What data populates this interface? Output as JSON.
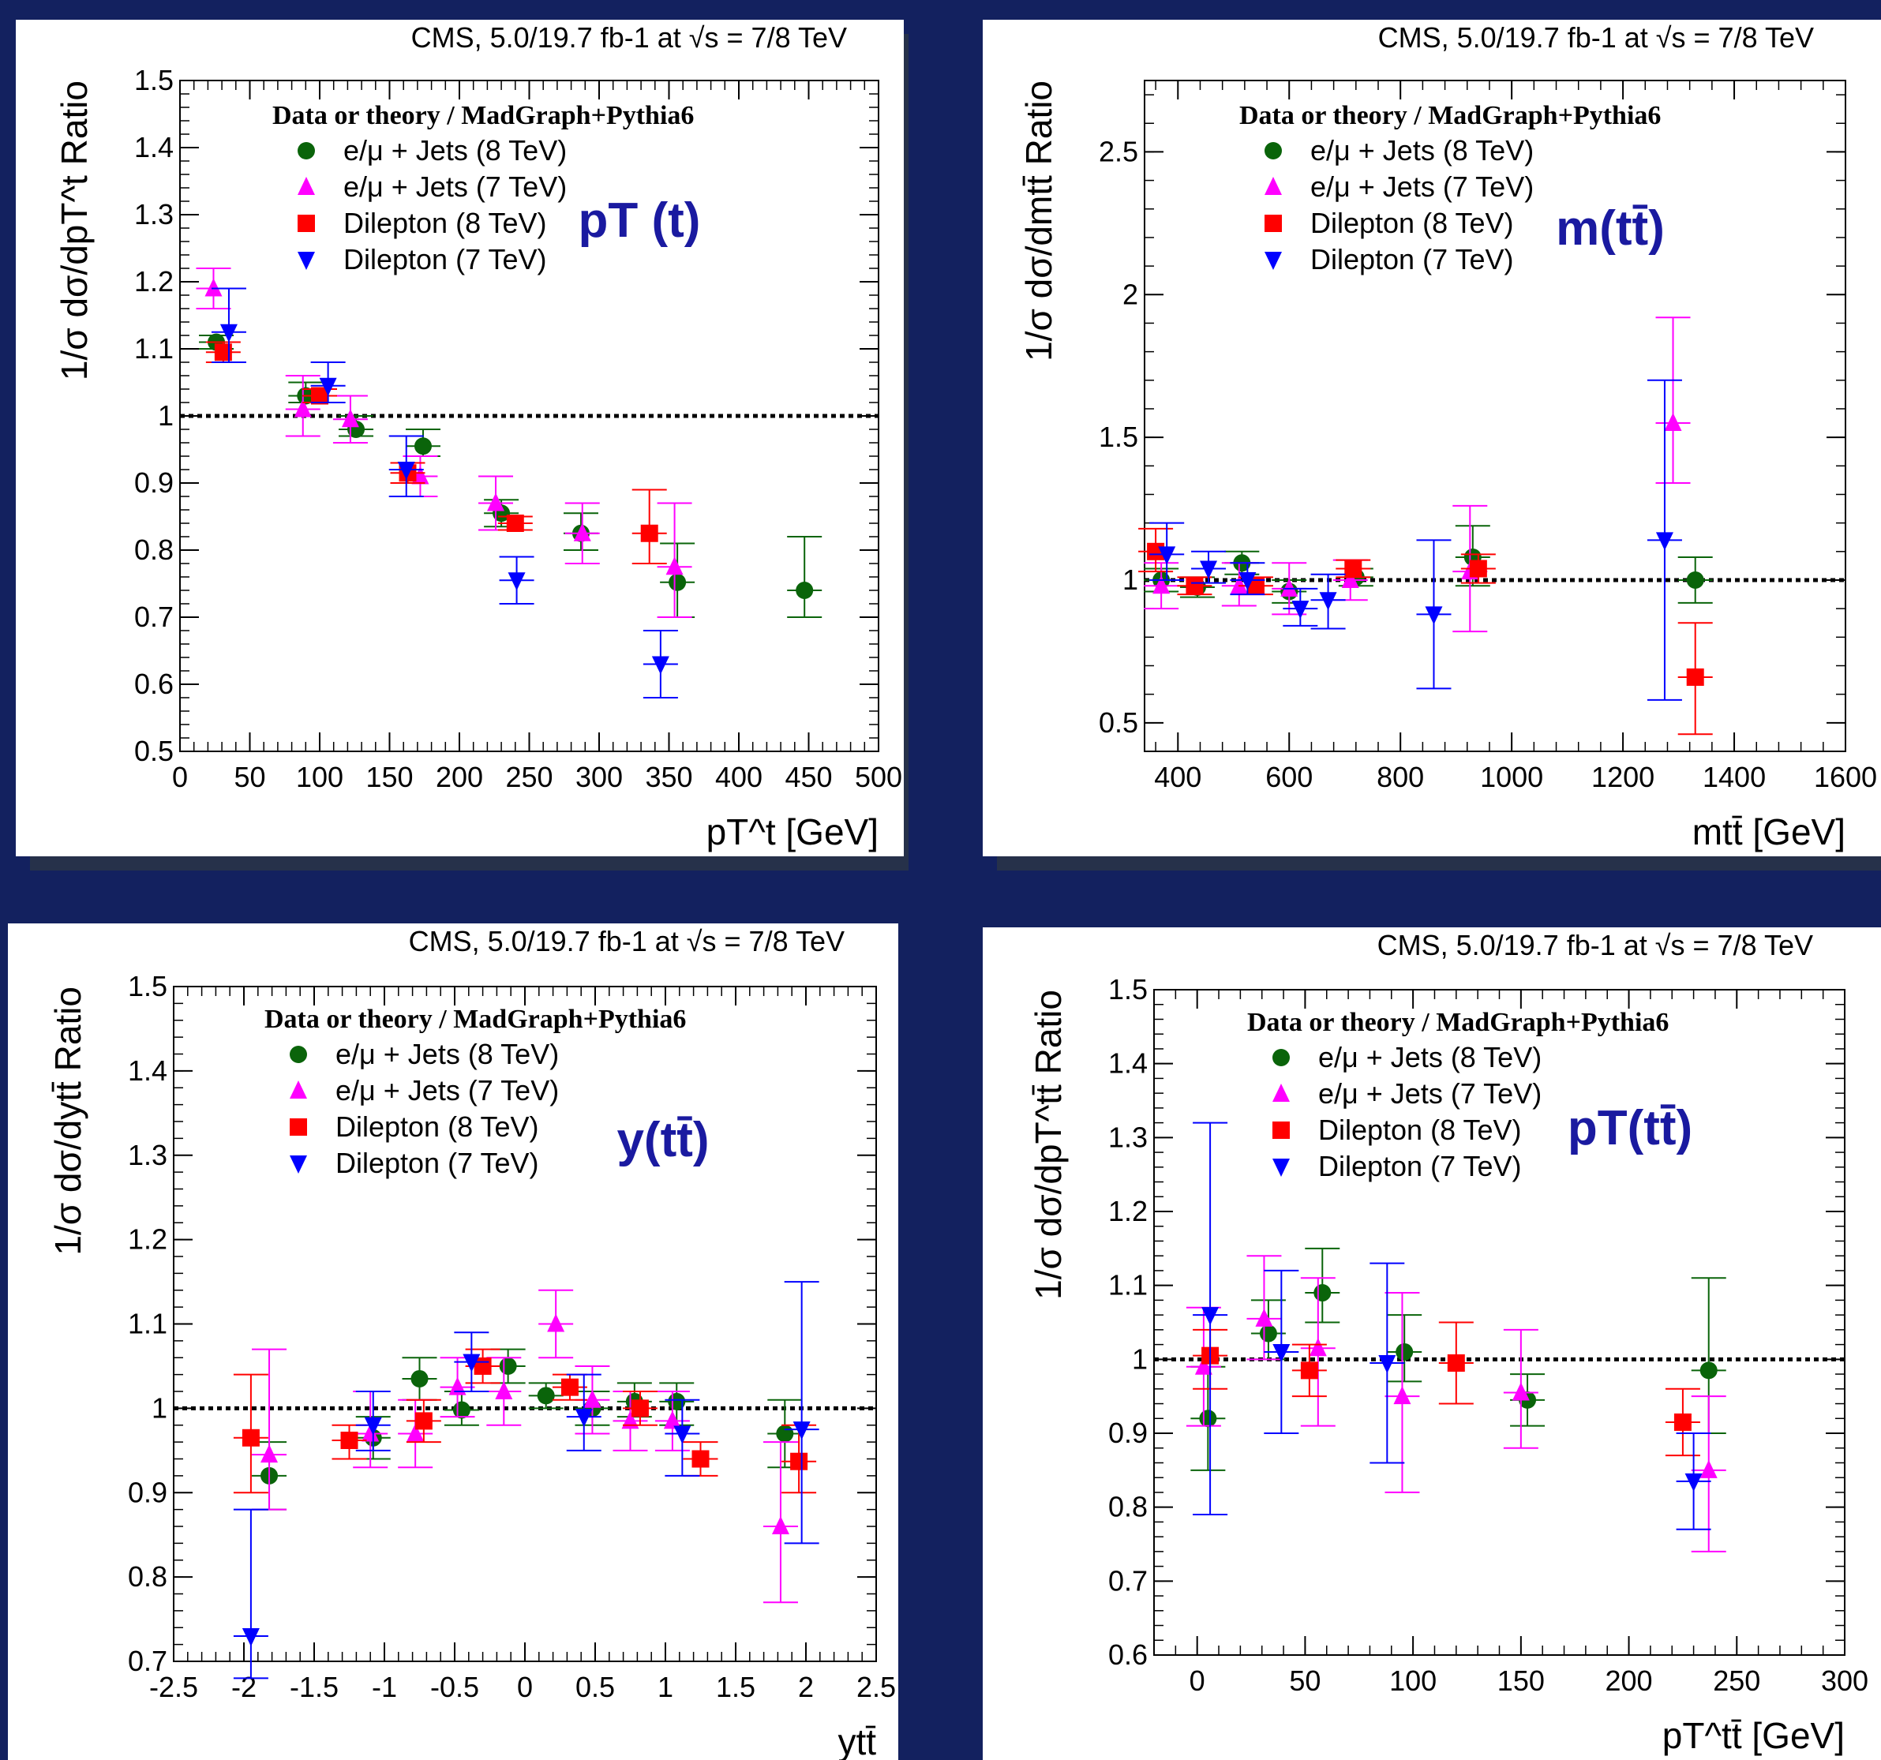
{
  "colors": {
    "background": "#13215f",
    "e_mu_8": "#0a640a",
    "e_mu_7": "#ff00ff",
    "dilep_8": "#ff0000",
    "dilep_7": "#0000ff",
    "annotation": "#1a1aa0"
  },
  "legend_header": "Data or theory / MadGraph+Pythia6",
  "chart_data": [
    {
      "type": "scatter",
      "header": "CMS, 5.0/19.7 fb-1 at √s = 7/8 TeV",
      "annotation": "pT (t)",
      "xlabel": "pT^t [GeV]",
      "ylabel": "1/σ dσ/dpT^t Ratio",
      "xlim": [
        0,
        500
      ],
      "ylim": [
        0.5,
        1.5
      ],
      "xticks": [
        "0",
        "50",
        "100",
        "150",
        "200",
        "250",
        "300",
        "350",
        "400",
        "450",
        "500"
      ],
      "yticks": [
        "0.5",
        "0.6",
        "0.7",
        "0.8",
        "0.9",
        "1",
        "1.1",
        "1.2",
        "1.3",
        "1.4",
        "1.5"
      ],
      "legend": [
        "e/μ + Jets (8 TeV)",
        "e/μ + Jets (7 TeV)",
        "Dilepton (8 TeV)",
        "Dilepton (7 TeV)"
      ],
      "series": [
        {
          "name": "e/μ + Jets (8 TeV)",
          "marker": "circle",
          "points": [
            {
              "x": 26,
              "y": 1.11,
              "lo": 1.1,
              "hi": 1.12
            },
            {
              "x": 90,
              "y": 1.03,
              "lo": 1.02,
              "hi": 1.05
            },
            {
              "x": 126,
              "y": 0.98,
              "lo": 0.97,
              "hi": 1.0
            },
            {
              "x": 174,
              "y": 0.955,
              "lo": 0.94,
              "hi": 0.98
            },
            {
              "x": 230,
              "y": 0.855,
              "lo": 0.835,
              "hi": 0.875
            },
            {
              "x": 287,
              "y": 0.825,
              "lo": 0.8,
              "hi": 0.855
            },
            {
              "x": 356,
              "y": 0.752,
              "lo": 0.7,
              "hi": 0.81
            },
            {
              "x": 447,
              "y": 0.74,
              "lo": 0.7,
              "hi": 0.82
            }
          ]
        },
        {
          "name": "e/μ + Jets (7 TeV)",
          "marker": "triangle-up",
          "points": [
            {
              "x": 24,
              "y": 1.19,
              "lo": 1.16,
              "hi": 1.22
            },
            {
              "x": 88,
              "y": 1.01,
              "lo": 0.97,
              "hi": 1.06
            },
            {
              "x": 122,
              "y": 0.995,
              "lo": 0.96,
              "hi": 1.03
            },
            {
              "x": 172,
              "y": 0.91,
              "lo": 0.88,
              "hi": 0.94
            },
            {
              "x": 226,
              "y": 0.87,
              "lo": 0.83,
              "hi": 0.91
            },
            {
              "x": 288,
              "y": 0.825,
              "lo": 0.78,
              "hi": 0.87
            },
            {
              "x": 354,
              "y": 0.775,
              "lo": 0.7,
              "hi": 0.87
            }
          ]
        },
        {
          "name": "Dilepton (8 TeV)",
          "marker": "square",
          "points": [
            {
              "x": 31,
              "y": 1.095,
              "lo": 1.08,
              "hi": 1.11
            },
            {
              "x": 100,
              "y": 1.03,
              "lo": 1.02,
              "hi": 1.04
            },
            {
              "x": 163,
              "y": 0.915,
              "lo": 0.9,
              "hi": 0.93
            },
            {
              "x": 240,
              "y": 0.84,
              "lo": 0.83,
              "hi": 0.85
            },
            {
              "x": 336,
              "y": 0.825,
              "lo": 0.78,
              "hi": 0.89
            }
          ]
        },
        {
          "name": "Dilepton (7 TeV)",
          "marker": "triangle-down",
          "points": [
            {
              "x": 35,
              "y": 1.125,
              "lo": 1.08,
              "hi": 1.19
            },
            {
              "x": 106,
              "y": 1.045,
              "lo": 1.02,
              "hi": 1.08
            },
            {
              "x": 162,
              "y": 0.92,
              "lo": 0.88,
              "hi": 0.97
            },
            {
              "x": 241,
              "y": 0.755,
              "lo": 0.72,
              "hi": 0.79
            },
            {
              "x": 344,
              "y": 0.63,
              "lo": 0.58,
              "hi": 0.68
            }
          ]
        }
      ]
    },
    {
      "type": "scatter",
      "header": "CMS, 5.0/19.7 fb-1 at √s = 7/8 TeV",
      "annotation": "m(tt̄)",
      "xlabel": "mtt̄ [GeV]",
      "ylabel": "1/σ dσ/dmtt̄ Ratio",
      "xlim": [
        340,
        1600
      ],
      "ylim": [
        0.4,
        2.75
      ],
      "xticks": [
        "400",
        "600",
        "800",
        "1000",
        "1200",
        "1400",
        "1600"
      ],
      "yticks": [
        "0.5",
        "1",
        "1.5",
        "2",
        "2.5"
      ],
      "legend": [
        "e/μ + Jets (8 TeV)",
        "e/μ + Jets (7 TeV)",
        "Dilepton (8 TeV)",
        "Dilepton (7 TeV)"
      ],
      "series": [
        {
          "name": "e/μ + Jets (8 TeV)",
          "marker": "circle",
          "points": [
            {
              "x": 370,
              "y": 1.0,
              "lo": 0.96,
              "hi": 1.04
            },
            {
              "x": 435,
              "y": 0.975,
              "lo": 0.94,
              "hi": 1.01
            },
            {
              "x": 515,
              "y": 1.06,
              "lo": 1.02,
              "hi": 1.1
            },
            {
              "x": 600,
              "y": 0.96,
              "lo": 0.92,
              "hi": 1.0
            },
            {
              "x": 720,
              "y": 1.01,
              "lo": 0.98,
              "hi": 1.04
            },
            {
              "x": 930,
              "y": 1.08,
              "lo": 0.98,
              "hi": 1.19
            },
            {
              "x": 1330,
              "y": 1.0,
              "lo": 0.92,
              "hi": 1.08
            }
          ]
        },
        {
          "name": "e/μ + Jets (7 TeV)",
          "marker": "triangle-up",
          "points": [
            {
              "x": 370,
              "y": 0.98,
              "lo": 0.9,
              "hi": 1.06
            },
            {
              "x": 510,
              "y": 0.98,
              "lo": 0.91,
              "hi": 1.06
            },
            {
              "x": 600,
              "y": 0.97,
              "lo": 0.88,
              "hi": 1.06
            },
            {
              "x": 710,
              "y": 1.0,
              "lo": 0.93,
              "hi": 1.07
            },
            {
              "x": 925,
              "y": 1.03,
              "lo": 0.82,
              "hi": 1.26
            },
            {
              "x": 1290,
              "y": 1.55,
              "lo": 1.34,
              "hi": 1.92
            }
          ]
        },
        {
          "name": "Dilepton (8 TeV)",
          "marker": "square",
          "points": [
            {
              "x": 360,
              "y": 1.1,
              "lo": 1.03,
              "hi": 1.18
            },
            {
              "x": 430,
              "y": 0.98,
              "lo": 0.95,
              "hi": 1.01
            },
            {
              "x": 540,
              "y": 0.98,
              "lo": 0.95,
              "hi": 1.01
            },
            {
              "x": 715,
              "y": 1.04,
              "lo": 1.01,
              "hi": 1.07
            },
            {
              "x": 940,
              "y": 1.04,
              "lo": 0.99,
              "hi": 1.09
            },
            {
              "x": 1330,
              "y": 0.66,
              "lo": 0.46,
              "hi": 0.85
            }
          ]
        },
        {
          "name": "Dilepton (7 TeV)",
          "marker": "triangle-down",
          "points": [
            {
              "x": 380,
              "y": 1.09,
              "lo": 1.0,
              "hi": 1.2
            },
            {
              "x": 455,
              "y": 1.04,
              "lo": 0.99,
              "hi": 1.1
            },
            {
              "x": 525,
              "y": 1.0,
              "lo": 0.95,
              "hi": 1.06
            },
            {
              "x": 620,
              "y": 0.9,
              "lo": 0.84,
              "hi": 0.97
            },
            {
              "x": 670,
              "y": 0.93,
              "lo": 0.83,
              "hi": 1.02
            },
            {
              "x": 860,
              "y": 0.88,
              "lo": 0.62,
              "hi": 1.14
            },
            {
              "x": 1275,
              "y": 1.14,
              "lo": 0.58,
              "hi": 1.7
            }
          ]
        }
      ]
    },
    {
      "type": "scatter",
      "header": "CMS, 5.0/19.7 fb-1 at √s = 7/8 TeV",
      "annotation": "y(tt̄)",
      "xlabel": "ytt̄",
      "ylabel": "1/σ dσ/dytt̄ Ratio",
      "xlim": [
        -2.5,
        2.5
      ],
      "ylim": [
        0.7,
        1.5
      ],
      "xticks": [
        "-2.5",
        "-2",
        "-1.5",
        "-1",
        "-0.5",
        "0",
        "0.5",
        "1",
        "1.5",
        "2",
        "2.5"
      ],
      "yticks": [
        "0.7",
        "0.8",
        "0.9",
        "1",
        "1.1",
        "1.2",
        "1.3",
        "1.4",
        "1.5"
      ],
      "legend": [
        "e/μ + Jets (8 TeV)",
        "e/μ + Jets (7 TeV)",
        "Dilepton (8 TeV)",
        "Dilepton (7 TeV)"
      ],
      "series": [
        {
          "name": "e/μ + Jets (8 TeV)",
          "marker": "circle",
          "points": [
            {
              "x": -1.82,
              "y": 0.92,
              "lo": 0.88,
              "hi": 0.96
            },
            {
              "x": -1.08,
              "y": 0.965,
              "lo": 0.94,
              "hi": 0.99
            },
            {
              "x": -0.75,
              "y": 1.035,
              "lo": 1.01,
              "hi": 1.06
            },
            {
              "x": -0.45,
              "y": 0.998,
              "lo": 0.98,
              "hi": 1.02
            },
            {
              "x": -0.12,
              "y": 1.05,
              "lo": 1.03,
              "hi": 1.07
            },
            {
              "x": 0.15,
              "y": 1.015,
              "lo": 1.0,
              "hi": 1.03
            },
            {
              "x": 0.48,
              "y": 1.0,
              "lo": 0.98,
              "hi": 1.02
            },
            {
              "x": 0.78,
              "y": 1.008,
              "lo": 0.99,
              "hi": 1.03
            },
            {
              "x": 1.08,
              "y": 1.008,
              "lo": 0.98,
              "hi": 1.03
            },
            {
              "x": 1.85,
              "y": 0.97,
              "lo": 0.93,
              "hi": 1.01
            }
          ]
        },
        {
          "name": "e/μ + Jets (7 TeV)",
          "marker": "triangle-up",
          "points": [
            {
              "x": -1.82,
              "y": 0.945,
              "lo": 0.88,
              "hi": 1.07
            },
            {
              "x": -1.1,
              "y": 0.97,
              "lo": 0.93,
              "hi": 1.02
            },
            {
              "x": -0.78,
              "y": 0.97,
              "lo": 0.93,
              "hi": 1.01
            },
            {
              "x": -0.48,
              "y": 1.025,
              "lo": 0.99,
              "hi": 1.06
            },
            {
              "x": -0.15,
              "y": 1.02,
              "lo": 0.98,
              "hi": 1.06
            },
            {
              "x": 0.22,
              "y": 1.1,
              "lo": 1.06,
              "hi": 1.14
            },
            {
              "x": 0.48,
              "y": 1.01,
              "lo": 0.97,
              "hi": 1.05
            },
            {
              "x": 0.75,
              "y": 0.985,
              "lo": 0.95,
              "hi": 1.02
            },
            {
              "x": 1.05,
              "y": 0.985,
              "lo": 0.95,
              "hi": 1.02
            },
            {
              "x": 1.82,
              "y": 0.86,
              "lo": 0.77,
              "hi": 0.96
            }
          ]
        },
        {
          "name": "Dilepton (8 TeV)",
          "marker": "square",
          "points": [
            {
              "x": -1.95,
              "y": 0.965,
              "lo": 0.9,
              "hi": 1.04
            },
            {
              "x": -1.25,
              "y": 0.962,
              "lo": 0.94,
              "hi": 0.98
            },
            {
              "x": -0.72,
              "y": 0.985,
              "lo": 0.96,
              "hi": 1.01
            },
            {
              "x": -0.3,
              "y": 1.05,
              "lo": 1.03,
              "hi": 1.07
            },
            {
              "x": 0.32,
              "y": 1.025,
              "lo": 1.01,
              "hi": 1.04
            },
            {
              "x": 0.82,
              "y": 1.0,
              "lo": 0.98,
              "hi": 1.02
            },
            {
              "x": 1.25,
              "y": 0.94,
              "lo": 0.92,
              "hi": 0.96
            },
            {
              "x": 1.95,
              "y": 0.937,
              "lo": 0.9,
              "hi": 0.98
            }
          ]
        },
        {
          "name": "Dilepton (7 TeV)",
          "marker": "triangle-down",
          "points": [
            {
              "x": -1.95,
              "y": 0.73,
              "lo": 0.68,
              "hi": 0.88
            },
            {
              "x": -1.08,
              "y": 0.98,
              "lo": 0.95,
              "hi": 1.02
            },
            {
              "x": -0.38,
              "y": 1.055,
              "lo": 1.02,
              "hi": 1.09
            },
            {
              "x": 0.42,
              "y": 0.99,
              "lo": 0.95,
              "hi": 1.04
            },
            {
              "x": 1.12,
              "y": 0.97,
              "lo": 0.92,
              "hi": 1.01
            },
            {
              "x": 1.97,
              "y": 0.975,
              "lo": 0.84,
              "hi": 1.15
            }
          ]
        }
      ]
    },
    {
      "type": "scatter",
      "header": "CMS, 5.0/19.7 fb-1 at √s = 7/8 TeV",
      "annotation": "pT(tt̄)",
      "xlabel": "pT^tt̄ [GeV]",
      "ylabel": "1/σ dσ/dpT^tt̄ Ratio",
      "xlim": [
        -20,
        300
      ],
      "ylim": [
        0.6,
        1.5
      ],
      "xticks": [
        "0",
        "50",
        "100",
        "150",
        "200",
        "250",
        "300"
      ],
      "yticks": [
        "0.6",
        "0.7",
        "0.8",
        "0.9",
        "1",
        "1.1",
        "1.2",
        "1.3",
        "1.4",
        "1.5"
      ],
      "legend": [
        "e/μ + Jets (8 TeV)",
        "e/μ + Jets (7 TeV)",
        "Dilepton (8 TeV)",
        "Dilepton (7 TeV)"
      ],
      "series": [
        {
          "name": "e/μ + Jets (8 TeV)",
          "marker": "circle",
          "points": [
            {
              "x": 5,
              "y": 0.92,
              "lo": 0.85,
              "hi": 0.99
            },
            {
              "x": 33,
              "y": 1.035,
              "lo": 1.0,
              "hi": 1.08
            },
            {
              "x": 58,
              "y": 1.09,
              "lo": 1.05,
              "hi": 1.15
            },
            {
              "x": 96,
              "y": 1.01,
              "lo": 0.97,
              "hi": 1.06
            },
            {
              "x": 153,
              "y": 0.945,
              "lo": 0.91,
              "hi": 0.98
            },
            {
              "x": 237,
              "y": 0.985,
              "lo": 0.9,
              "hi": 1.11
            }
          ]
        },
        {
          "name": "e/μ + Jets (7 TeV)",
          "marker": "triangle-up",
          "points": [
            {
              "x": 3,
              "y": 0.99,
              "lo": 0.91,
              "hi": 1.07
            },
            {
              "x": 31,
              "y": 1.055,
              "lo": 1.0,
              "hi": 1.14
            },
            {
              "x": 56,
              "y": 1.015,
              "lo": 0.91,
              "hi": 1.11
            },
            {
              "x": 95,
              "y": 0.95,
              "lo": 0.82,
              "hi": 1.09
            },
            {
              "x": 150,
              "y": 0.955,
              "lo": 0.88,
              "hi": 1.04
            },
            {
              "x": 237,
              "y": 0.85,
              "lo": 0.74,
              "hi": 0.95
            }
          ]
        },
        {
          "name": "Dilepton (8 TeV)",
          "marker": "square",
          "points": [
            {
              "x": 6,
              "y": 1.005,
              "lo": 0.96,
              "hi": 1.04
            },
            {
              "x": 52,
              "y": 0.985,
              "lo": 0.95,
              "hi": 1.02
            },
            {
              "x": 120,
              "y": 0.995,
              "lo": 0.94,
              "hi": 1.05
            },
            {
              "x": 225,
              "y": 0.915,
              "lo": 0.87,
              "hi": 0.96
            }
          ]
        },
        {
          "name": "Dilepton (7 TeV)",
          "marker": "triangle-down",
          "points": [
            {
              "x": 6,
              "y": 1.06,
              "lo": 0.79,
              "hi": 1.32
            },
            {
              "x": 39,
              "y": 1.01,
              "lo": 0.9,
              "hi": 1.12
            },
            {
              "x": 88,
              "y": 0.995,
              "lo": 0.86,
              "hi": 1.13
            },
            {
              "x": 230,
              "y": 0.835,
              "lo": 0.77,
              "hi": 0.9
            }
          ]
        }
      ]
    }
  ]
}
